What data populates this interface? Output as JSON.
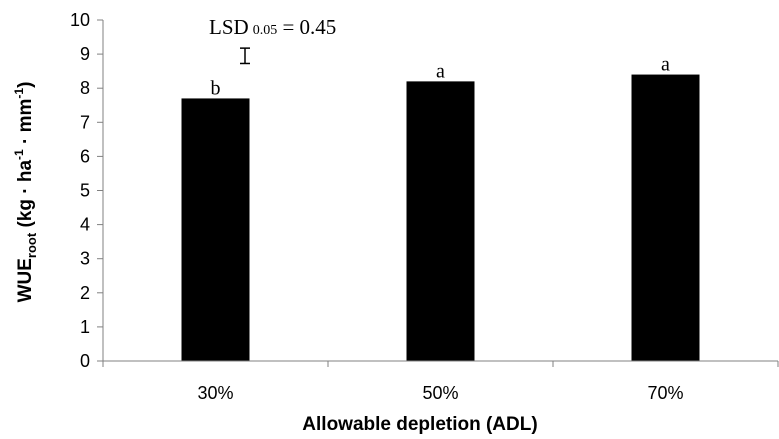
{
  "chart_data": {
    "type": "bar",
    "categories": [
      "30%",
      "50%",
      "70%"
    ],
    "values": [
      7.7,
      8.2,
      8.4
    ],
    "significance_letters": [
      "b",
      "a",
      "a"
    ],
    "title": "",
    "xlabel": "Allowable depletion (ADL)",
    "ylabel": {
      "main": "WUE",
      "subscript": "root",
      "units_open": " (kg · ha",
      "sup1": "-1",
      "units_mid": " · mm",
      "sup2": "-1",
      "units_close": ")"
    },
    "ylim": [
      0,
      10
    ],
    "yticks": [
      0,
      1,
      2,
      3,
      4,
      5,
      6,
      7,
      8,
      9,
      10
    ],
    "grid": false,
    "bar_color": "#000000",
    "lsd": {
      "label_main": "LSD",
      "label_sub": "0.05",
      "label_rest": " = 0.45",
      "value": 0.45
    }
  }
}
